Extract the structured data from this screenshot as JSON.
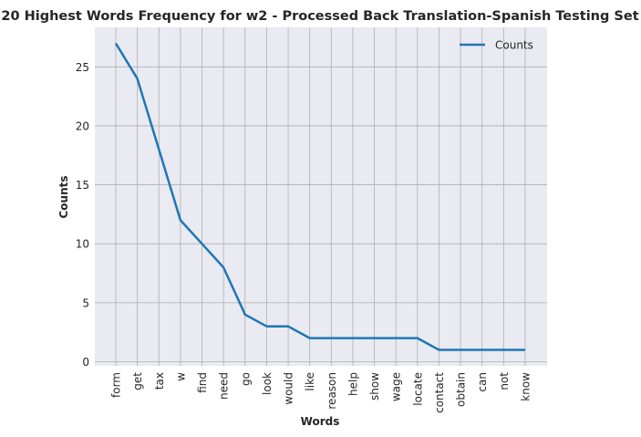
{
  "chart_data": {
    "type": "line",
    "title": "20 Highest Words Frequency for w2 - Processed Back Translation-Spanish Testing Set",
    "xlabel": "Words",
    "ylabel": "Counts",
    "categories": [
      "form",
      "get",
      "tax",
      "w",
      "find",
      "need",
      "go",
      "look",
      "would",
      "like",
      "reason",
      "help",
      "show",
      "wage",
      "locate",
      "contact",
      "obtain",
      "can",
      "not",
      "know"
    ],
    "series": [
      {
        "name": "Counts",
        "values": [
          27,
          24,
          18,
          12,
          10,
          8,
          4,
          3,
          3,
          2,
          2,
          2,
          2,
          2,
          2,
          1,
          1,
          1,
          1,
          1
        ]
      }
    ],
    "ylim": [
      -0.35,
      28.35
    ],
    "yticks": [
      0,
      5,
      10,
      15,
      20,
      25
    ],
    "grid": true,
    "legend_position": "top-right",
    "colors": {
      "line": "#1f77b4",
      "plot_bg": "#eaeaf2",
      "grid": "#b0b0b0"
    }
  }
}
